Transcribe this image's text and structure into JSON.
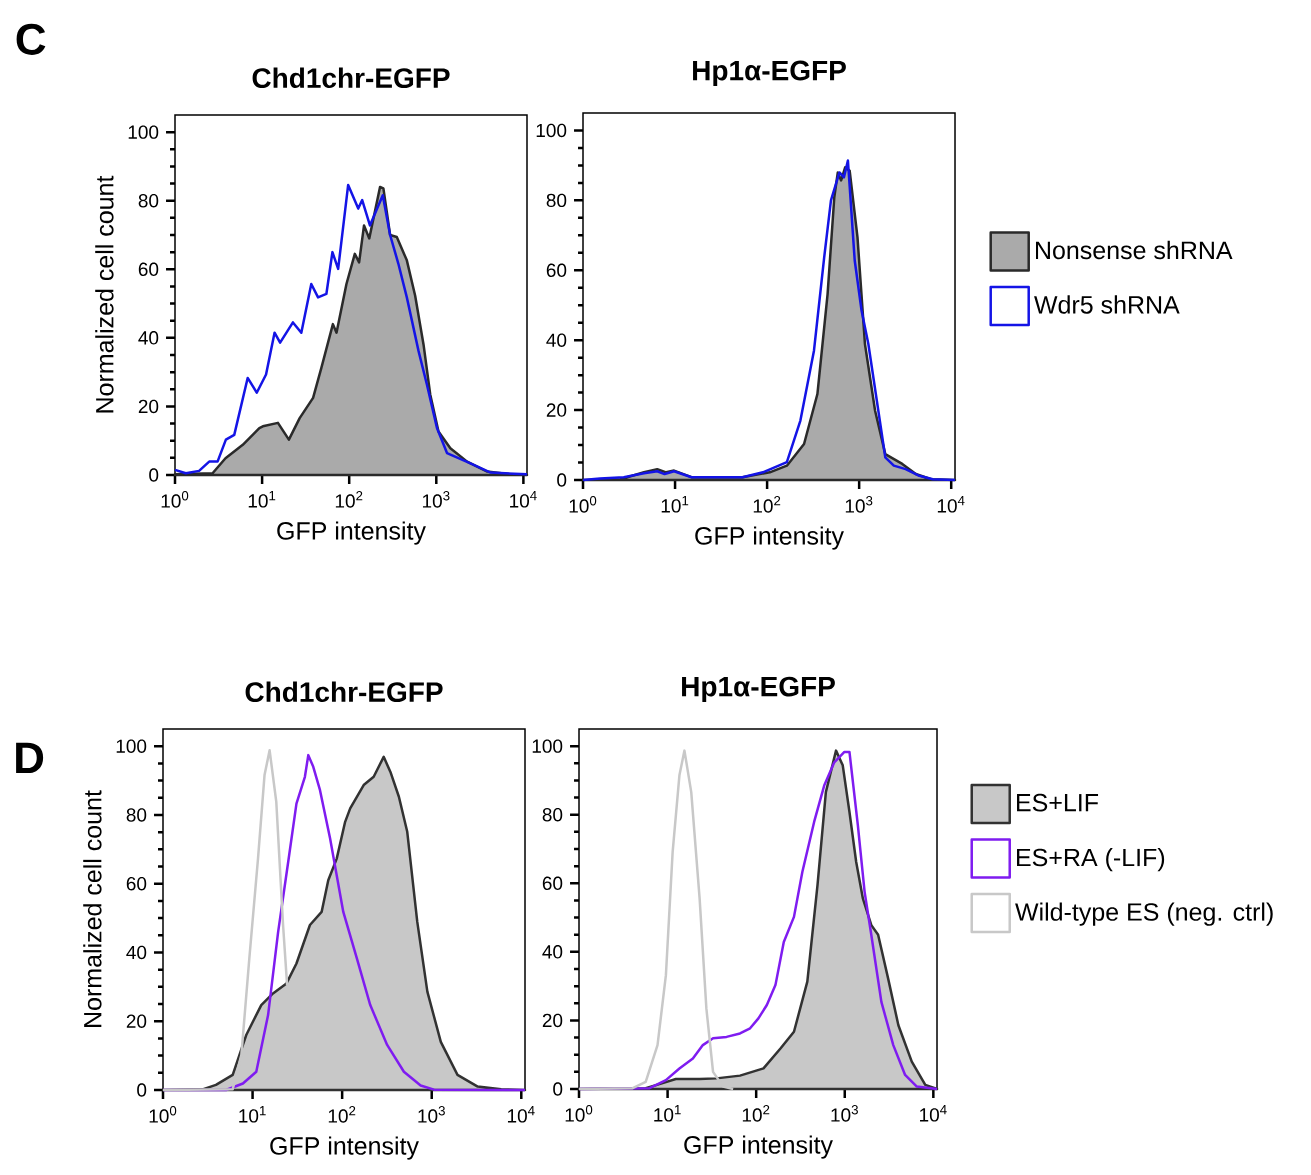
{
  "chart_data": [
    {
      "type": "line",
      "title": "Chd1chr-EGFP",
      "xlabel": "GFP intensity",
      "ylabel": "Normalized cell count",
      "log": "x",
      "annotations": [
        "C"
      ],
      "xlim": [
        1,
        11000
      ],
      "ylim": [
        0,
        105
      ],
      "xticks": [
        {
          "value": 1,
          "label": "10$^{0}$"
        },
        {
          "value": 10,
          "label": "10$^{1}$"
        },
        {
          "value": 100,
          "label": "10$^{2}$"
        },
        {
          "value": 1000,
          "label": "10$^{3}$"
        },
        {
          "value": 10000,
          "label": "10$^{4}$"
        }
      ],
      "yticks": [
        0,
        20,
        40,
        60,
        80,
        100
      ],
      "series": [
        {
          "type": "area",
          "color": "#aaaaaa",
          "x": [
            1,
            2.7,
            3.8,
            6.0,
            9.3,
            10.2,
            15.2,
            20.3,
            27,
            38.5,
            48,
            65,
            71.5,
            93,
            116,
            130,
            148,
            170,
            226,
            247,
            295,
            352,
            459,
            572,
            714,
            852,
            1060,
            1450,
            2260,
            3840,
            7140,
            11000
          ],
          "values": [
            0.2,
            0.5,
            4.9,
            8.8,
            13.7,
            14.2,
            15.2,
            10.3,
            16.6,
            22.5,
            31.3,
            44,
            41.5,
            55.7,
            64.5,
            62,
            72.8,
            69,
            84,
            83.6,
            70,
            69.4,
            62.6,
            52.3,
            38,
            23.5,
            12.7,
            7.8,
            3.9,
            1,
            0.2,
            0
          ]
        },
        {
          "color": "#1414e6",
          "x": [
            1,
            1.33,
            1.89,
            2.47,
            3.08,
            3.84,
            4.79,
            6.83,
            8.68,
            11.1,
            13.9,
            16.1,
            22.6,
            28.2,
            36.7,
            43.9,
            54.7,
            64.2,
            74.7,
            97.3,
            127,
            141,
            173,
            243,
            295,
            367,
            459,
            625,
            780,
            1018,
            1327,
            2470,
            4200,
            11000
          ],
          "values": [
            1.5,
            0.5,
            1.2,
            3.9,
            3.9,
            10.3,
            11.7,
            28.3,
            24,
            29.3,
            41.5,
            38.6,
            44.5,
            41.5,
            55.7,
            51.8,
            52.8,
            65,
            60.1,
            84.6,
            77.7,
            80.2,
            72.8,
            81.6,
            70,
            61.6,
            51.8,
            36.2,
            26.4,
            13.7,
            6.4,
            3.4,
            0.7,
            0.2
          ]
        }
      ]
    },
    {
      "type": "line",
      "title": "Hp1α-EGFP",
      "xlabel": "GFP intensity",
      "log": "x",
      "legend": "right",
      "xlim": [
        1,
        11000
      ],
      "ylim": [
        0,
        105
      ],
      "xticks": [
        {
          "value": 1,
          "label": "10$^{0}$"
        },
        {
          "value": 10,
          "label": "10$^{1}$"
        },
        {
          "value": 100,
          "label": "10$^{2}$"
        },
        {
          "value": 1000,
          "label": "10$^{3}$"
        },
        {
          "value": 10000,
          "label": "10$^{4}$"
        }
      ],
      "yticks": [
        0,
        20,
        40,
        60,
        80,
        100
      ],
      "series": [
        {
          "type": "area",
          "name": "Nonsense shRNA",
          "color": "#aaaaaa",
          "x": [
            1,
            2.55,
            4.6,
            6.4,
            8.0,
            9.75,
            15.1,
            23.2,
            54,
            107,
            164,
            252,
            352,
            454,
            537,
            586,
            637,
            706,
            789,
            959,
            1156,
            1490,
            1923,
            2940,
            4130,
            6050,
            11000
          ],
          "values": [
            0,
            0.2,
            2.2,
            3.1,
            2.2,
            2.7,
            0.8,
            0.8,
            0.8,
            2.2,
            4.1,
            10.3,
            24.6,
            53.2,
            80.9,
            88,
            85.7,
            89.5,
            88.5,
            69.5,
            38.9,
            19.8,
            7.4,
            4.6,
            1.7,
            0.2,
            0
          ]
        },
        {
          "name": "Wdr5 shRNA",
          "color": "#1414e6",
          "x": [
            1,
            1.53,
            2.77,
            4.6,
            6.4,
            7.7,
            9.75,
            15.1,
            54,
            90,
            164,
            230,
            323,
            417,
            494,
            611,
            684,
            755,
            895,
            1062,
            1259,
            1923,
            2380,
            3200,
            4500,
            6310,
            11000
          ],
          "values": [
            0,
            0.4,
            0.8,
            1.9,
            2.5,
            1.7,
            2.5,
            0.8,
            0.8,
            2.2,
            5.1,
            17,
            37,
            63.7,
            80,
            88,
            86.6,
            91.4,
            62.8,
            48.5,
            38.9,
            6.5,
            4.1,
            3.1,
            1.2,
            0.2,
            0
          ]
        }
      ]
    },
    {
      "type": "line",
      "title": "Chd1chr-EGFP",
      "xlabel": "GFP intensity",
      "ylabel": "Normalized cell count",
      "log": "x",
      "annotations": [
        "D"
      ],
      "xlim": [
        1,
        11000
      ],
      "ylim": [
        0,
        105
      ],
      "xticks": [
        {
          "value": 1,
          "label": "10$^{0}$"
        },
        {
          "value": 10,
          "label": "10$^{1}$"
        },
        {
          "value": 100,
          "label": "10$^{2}$"
        },
        {
          "value": 1000,
          "label": "10$^{3}$"
        },
        {
          "value": 10000,
          "label": "10$^{4}$"
        }
      ],
      "yticks": [
        0,
        20,
        40,
        60,
        80,
        100
      ],
      "series": [
        {
          "type": "area",
          "color": "#c8c8c8",
          "x": [
            1,
            2.77,
            3.9,
            6.0,
            8.5,
            12.5,
            16.9,
            23.9,
            30.9,
            43.7,
            59,
            70,
            87,
            108,
            123,
            174,
            225,
            291,
            346,
            430,
            533,
            690,
            894,
            1263,
            1940,
            3260,
            5960,
            11000
          ],
          "values": [
            0,
            0.2,
            1.5,
            4.4,
            16,
            24.7,
            28.1,
            31,
            36.8,
            48,
            51.8,
            61,
            67.3,
            78,
            81.9,
            88.7,
            91.1,
            96.9,
            92.5,
            85.3,
            75.1,
            48.9,
            28.6,
            14,
            4.4,
            1,
            0.2,
            0
          ]
        },
        {
          "color": "#7f1cf0",
          "x": [
            1,
            5.06,
            7.8,
            11,
            14.9,
            19.3,
            25,
            30.9,
            38.4,
            41.9,
            47.6,
            56.6,
            73.3,
            103,
            146,
            206,
            318,
            489,
            752,
            1062,
            11000
          ],
          "values": [
            0,
            0,
            1.9,
            5.3,
            21.8,
            46,
            66.4,
            83.3,
            91.1,
            97.4,
            94,
            87.2,
            73.2,
            51.8,
            38.3,
            24.7,
            13.1,
            5.3,
            1.3,
            0.1,
            0
          ]
        },
        {
          "color": "#c8c8c8",
          "x": [
            1,
            6.0,
            7.5,
            9.2,
            11.5,
            13.6,
            15.5,
            18.4,
            21.9,
            24.3
          ],
          "values": [
            0,
            0.2,
            10.2,
            38.3,
            67.3,
            91.6,
            98.8,
            83.8,
            48,
            30.5
          ]
        }
      ]
    },
    {
      "type": "line",
      "title": "Hp1α-EGFP",
      "xlabel": "GFP intensity",
      "log": "x",
      "legend": "right",
      "xlim": [
        1,
        11000
      ],
      "ylim": [
        0,
        105
      ],
      "xticks": [
        {
          "value": 1,
          "label": "10$^{0}$"
        },
        {
          "value": 10,
          "label": "10$^{1}$"
        },
        {
          "value": 100,
          "label": "10$^{2}$"
        },
        {
          "value": 1000,
          "label": "10$^{3}$"
        },
        {
          "value": 10000,
          "label": "10$^{4}$"
        }
      ],
      "yticks": [
        0,
        20,
        40,
        60,
        80,
        100
      ],
      "series": [
        {
          "type": "area",
          "name": "ES+LIF",
          "color": "#c8c8c8",
          "x": [
            1,
            5.66,
            8.8,
            12.4,
            23,
            35.6,
            65.7,
            121,
            188,
            267,
            378,
            492,
            612,
            797,
            949,
            1130,
            1346,
            1603,
            1995,
            2380,
            3090,
            4030,
            5710,
            8110,
            11000
          ],
          "values": [
            0,
            0.2,
            1.7,
            2.9,
            2.9,
            3.1,
            3.9,
            6,
            11.8,
            16.7,
            31.3,
            59.4,
            86.6,
            98.7,
            94.4,
            80.8,
            66.2,
            55.5,
            47.8,
            45,
            32.2,
            18.6,
            8,
            1.2,
            0
          ]
        },
        {
          "name": "ES+RA (-LIF)",
          "color": "#7f1cf0",
          "x": [
            1,
            6.18,
            9.57,
            13.6,
            19.3,
            25,
            32.6,
            46.3,
            65.7,
            85.4,
            106,
            132,
            165,
            205,
            267,
            332,
            451,
            586,
            762,
            991,
            1130,
            1406,
            1675,
            1995,
            2590,
            3530,
            4800,
            6510,
            11000
          ],
          "values": [
            0,
            0.2,
            2.6,
            6,
            8.9,
            12.8,
            14.8,
            15.2,
            16.2,
            17.7,
            20.6,
            24.5,
            30.3,
            42.9,
            50.2,
            63.3,
            77.9,
            88.5,
            95.3,
            98.3,
            98.3,
            76.9,
            57.5,
            44.9,
            25.4,
            12.8,
            4.1,
            0.7,
            0
          ]
        },
        {
          "name": "Wild-type ES (neg. ctrl)",
          "color": "#c8c8c8",
          "x": [
            1,
            3.99,
            5.66,
            7.7,
            9.57,
            11.4,
            13.6,
            15.5,
            18.5,
            23,
            27.4,
            32.6,
            42.4,
            55
          ],
          "values": [
            0,
            0.2,
            2.1,
            12.8,
            33.2,
            69.1,
            91.5,
            98.7,
            86.6,
            55.5,
            23.5,
            5,
            0.7,
            0
          ]
        }
      ]
    }
  ]
}
